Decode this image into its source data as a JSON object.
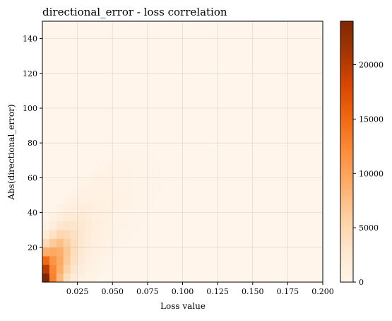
{
  "chart_data": {
    "type": "heatmap",
    "title": "directional_error - loss correlation",
    "xlabel": "Loss value",
    "ylabel": "Abs(directional_error)",
    "xlim": [
      0.0,
      0.2
    ],
    "ylim": [
      0,
      150
    ],
    "x_ticks": [
      0.025,
      0.05,
      0.075,
      0.1,
      0.125,
      0.15,
      0.175,
      0.2
    ],
    "x_tick_labels": [
      "0.025",
      "0.050",
      "0.075",
      "0.100",
      "0.125",
      "0.150",
      "0.175",
      "0.200"
    ],
    "y_ticks": [
      20,
      40,
      60,
      80,
      100,
      120,
      140
    ],
    "y_tick_labels": [
      "20",
      "40",
      "60",
      "80",
      "100",
      "120",
      "140"
    ],
    "grid": true,
    "x_bin_width": 0.005,
    "y_bin_width": 5,
    "colormap": "Oranges",
    "colorbar": {
      "min": 0,
      "max": 24000,
      "ticks": [
        0,
        5000,
        10000,
        15000,
        20000
      ],
      "tick_labels": [
        "0",
        "5000",
        "10000",
        "15000",
        "20000"
      ]
    },
    "cells": [
      [
        0.0,
        0,
        24000
      ],
      [
        0.0,
        5,
        20000
      ],
      [
        0.0,
        10,
        15000
      ],
      [
        0.0,
        15,
        9000
      ],
      [
        0.0,
        20,
        4500
      ],
      [
        0.0,
        25,
        2000
      ],
      [
        0.0,
        30,
        800
      ],
      [
        0.005,
        0,
        13000
      ],
      [
        0.005,
        5,
        12500
      ],
      [
        0.005,
        10,
        11500
      ],
      [
        0.005,
        15,
        9500
      ],
      [
        0.005,
        20,
        6500
      ],
      [
        0.005,
        25,
        3500
      ],
      [
        0.005,
        30,
        1600
      ],
      [
        0.005,
        35,
        700
      ],
      [
        0.01,
        0,
        8000
      ],
      [
        0.01,
        5,
        9000
      ],
      [
        0.01,
        10,
        9500
      ],
      [
        0.01,
        15,
        9000
      ],
      [
        0.01,
        20,
        7500
      ],
      [
        0.01,
        25,
        5000
      ],
      [
        0.01,
        30,
        2800
      ],
      [
        0.01,
        35,
        1400
      ],
      [
        0.01,
        40,
        600
      ],
      [
        0.015,
        0,
        4000
      ],
      [
        0.015,
        5,
        5500
      ],
      [
        0.015,
        10,
        6500
      ],
      [
        0.015,
        15,
        6800
      ],
      [
        0.015,
        20,
        6000
      ],
      [
        0.015,
        25,
        4600
      ],
      [
        0.015,
        30,
        3300
      ],
      [
        0.015,
        35,
        2000
      ],
      [
        0.015,
        40,
        1000
      ],
      [
        0.015,
        45,
        500
      ],
      [
        0.02,
        0,
        2000
      ],
      [
        0.02,
        5,
        3000
      ],
      [
        0.02,
        10,
        3800
      ],
      [
        0.02,
        15,
        4200
      ],
      [
        0.02,
        20,
        4200
      ],
      [
        0.02,
        25,
        3800
      ],
      [
        0.02,
        30,
        3100
      ],
      [
        0.02,
        35,
        2300
      ],
      [
        0.02,
        40,
        1500
      ],
      [
        0.02,
        45,
        900
      ],
      [
        0.02,
        50,
        500
      ],
      [
        0.025,
        0,
        1000
      ],
      [
        0.025,
        5,
        1600
      ],
      [
        0.025,
        10,
        2200
      ],
      [
        0.025,
        15,
        2600
      ],
      [
        0.025,
        20,
        2800
      ],
      [
        0.025,
        25,
        2800
      ],
      [
        0.025,
        30,
        2500
      ],
      [
        0.025,
        35,
        2100
      ],
      [
        0.025,
        40,
        1600
      ],
      [
        0.025,
        45,
        1100
      ],
      [
        0.025,
        50,
        700
      ],
      [
        0.025,
        55,
        400
      ],
      [
        0.03,
        0,
        500
      ],
      [
        0.03,
        5,
        900
      ],
      [
        0.03,
        10,
        1300
      ],
      [
        0.03,
        15,
        1600
      ],
      [
        0.03,
        20,
        1800
      ],
      [
        0.03,
        25,
        1900
      ],
      [
        0.03,
        30,
        1900
      ],
      [
        0.03,
        35,
        1700
      ],
      [
        0.03,
        40,
        1400
      ],
      [
        0.03,
        45,
        1100
      ],
      [
        0.03,
        50,
        800
      ],
      [
        0.03,
        55,
        500
      ],
      [
        0.035,
        0,
        300
      ],
      [
        0.035,
        5,
        500
      ],
      [
        0.035,
        10,
        800
      ],
      [
        0.035,
        15,
        1000
      ],
      [
        0.035,
        20,
        1200
      ],
      [
        0.035,
        25,
        1300
      ],
      [
        0.035,
        30,
        1400
      ],
      [
        0.035,
        35,
        1300
      ],
      [
        0.035,
        40,
        1200
      ],
      [
        0.035,
        45,
        1000
      ],
      [
        0.035,
        50,
        800
      ],
      [
        0.035,
        55,
        600
      ],
      [
        0.035,
        60,
        400
      ],
      [
        0.04,
        5,
        300
      ],
      [
        0.04,
        10,
        500
      ],
      [
        0.04,
        15,
        700
      ],
      [
        0.04,
        20,
        800
      ],
      [
        0.04,
        25,
        900
      ],
      [
        0.04,
        30,
        1000
      ],
      [
        0.04,
        35,
        1000
      ],
      [
        0.04,
        40,
        1000
      ],
      [
        0.04,
        45,
        900
      ],
      [
        0.04,
        50,
        800
      ],
      [
        0.04,
        55,
        600
      ],
      [
        0.04,
        60,
        450
      ],
      [
        0.04,
        65,
        300
      ],
      [
        0.045,
        10,
        300
      ],
      [
        0.045,
        15,
        450
      ],
      [
        0.045,
        20,
        550
      ],
      [
        0.045,
        25,
        650
      ],
      [
        0.045,
        30,
        700
      ],
      [
        0.045,
        35,
        750
      ],
      [
        0.045,
        40,
        800
      ],
      [
        0.045,
        45,
        750
      ],
      [
        0.045,
        50,
        700
      ],
      [
        0.045,
        55,
        600
      ],
      [
        0.045,
        60,
        500
      ],
      [
        0.045,
        65,
        350
      ],
      [
        0.05,
        15,
        300
      ],
      [
        0.05,
        20,
        380
      ],
      [
        0.05,
        25,
        450
      ],
      [
        0.05,
        30,
        500
      ],
      [
        0.05,
        35,
        550
      ],
      [
        0.05,
        40,
        600
      ],
      [
        0.05,
        45,
        600
      ],
      [
        0.05,
        50,
        580
      ],
      [
        0.05,
        55,
        520
      ],
      [
        0.05,
        60,
        450
      ],
      [
        0.05,
        65,
        350
      ],
      [
        0.05,
        70,
        250
      ],
      [
        0.055,
        20,
        250
      ],
      [
        0.055,
        25,
        300
      ],
      [
        0.055,
        30,
        350
      ],
      [
        0.055,
        35,
        400
      ],
      [
        0.055,
        40,
        450
      ],
      [
        0.055,
        45,
        480
      ],
      [
        0.055,
        50,
        480
      ],
      [
        0.055,
        55,
        450
      ],
      [
        0.055,
        60,
        400
      ],
      [
        0.055,
        65,
        330
      ],
      [
        0.055,
        70,
        250
      ],
      [
        0.06,
        25,
        200
      ],
      [
        0.06,
        30,
        250
      ],
      [
        0.06,
        35,
        300
      ],
      [
        0.06,
        40,
        330
      ],
      [
        0.06,
        45,
        360
      ],
      [
        0.06,
        50,
        380
      ],
      [
        0.06,
        55,
        370
      ],
      [
        0.06,
        60,
        340
      ],
      [
        0.06,
        65,
        290
      ],
      [
        0.06,
        70,
        230
      ],
      [
        0.065,
        30,
        180
      ],
      [
        0.065,
        35,
        220
      ],
      [
        0.065,
        40,
        250
      ],
      [
        0.065,
        45,
        270
      ],
      [
        0.065,
        50,
        290
      ],
      [
        0.065,
        55,
        290
      ],
      [
        0.065,
        60,
        270
      ],
      [
        0.065,
        65,
        240
      ],
      [
        0.065,
        70,
        200
      ],
      [
        0.07,
        35,
        150
      ],
      [
        0.07,
        40,
        180
      ],
      [
        0.07,
        45,
        200
      ],
      [
        0.07,
        50,
        220
      ],
      [
        0.07,
        55,
        220
      ],
      [
        0.07,
        60,
        210
      ],
      [
        0.07,
        65,
        190
      ],
      [
        0.07,
        70,
        160
      ],
      [
        0.075,
        40,
        130
      ],
      [
        0.075,
        45,
        150
      ],
      [
        0.075,
        50,
        160
      ],
      [
        0.075,
        55,
        170
      ],
      [
        0.075,
        60,
        170
      ],
      [
        0.075,
        65,
        150
      ],
      [
        0.075,
        70,
        130
      ],
      [
        0.08,
        45,
        100
      ],
      [
        0.08,
        50,
        120
      ],
      [
        0.08,
        55,
        130
      ],
      [
        0.08,
        60,
        130
      ],
      [
        0.08,
        65,
        120
      ],
      [
        0.08,
        70,
        100
      ]
    ]
  }
}
